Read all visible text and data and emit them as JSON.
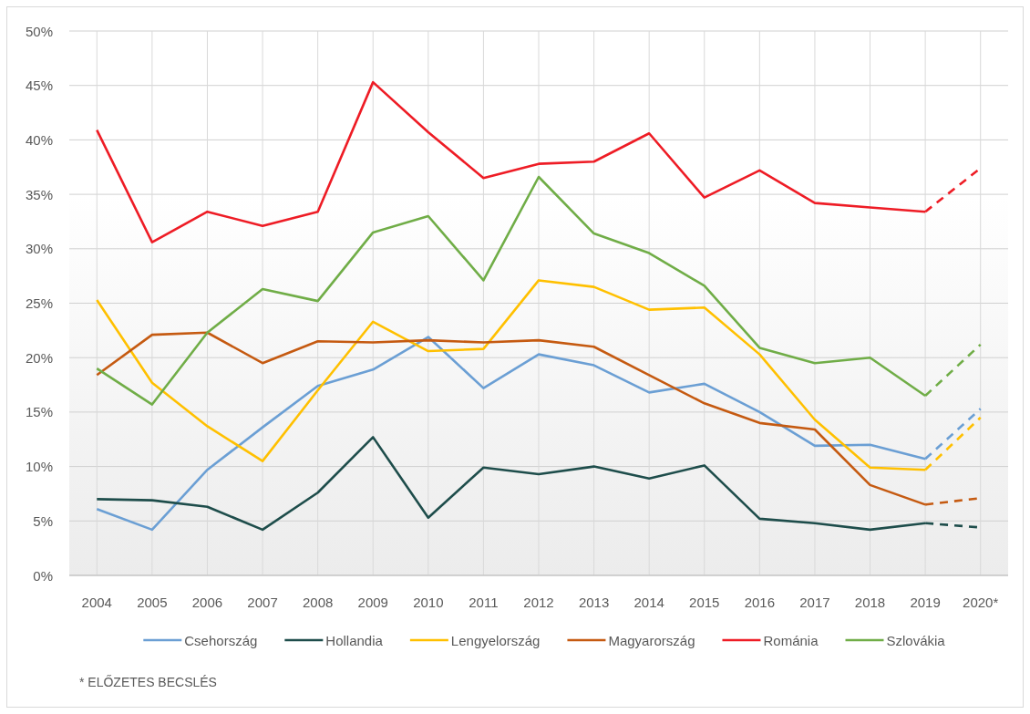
{
  "chart_data": {
    "type": "line",
    "categories": [
      "2004",
      "2005",
      "2006",
      "2007",
      "2008",
      "2009",
      "2010",
      "2011",
      "2012",
      "2013",
      "2014",
      "2015",
      "2016",
      "2017",
      "2018",
      "2019",
      "2020*"
    ],
    "ylim": [
      0,
      50
    ],
    "yticks": [
      {
        "value": 0,
        "label": "0%"
      },
      {
        "value": 5,
        "label": "5%"
      },
      {
        "value": 10,
        "label": "10%"
      },
      {
        "value": 15,
        "label": "15%"
      },
      {
        "value": 20,
        "label": "20%"
      },
      {
        "value": 25,
        "label": "25%"
      },
      {
        "value": 30,
        "label": "30%"
      },
      {
        "value": 35,
        "label": "35%"
      },
      {
        "value": 40,
        "label": "40%"
      },
      {
        "value": 45,
        "label": "45%"
      },
      {
        "value": 50,
        "label": "50%"
      }
    ],
    "grid": true,
    "legend": "bottom",
    "line_style": "solid",
    "marker": "none",
    "annotations": [
      "* ELŐZETES BECSLÉS"
    ],
    "series": [
      {
        "name": "Csehország",
        "color": "#6b9fd4",
        "values": [
          6.1,
          4.2,
          9.7,
          13.6,
          17.4,
          18.9,
          21.9,
          17.2,
          20.3,
          19.3,
          16.8,
          17.6,
          15.0,
          11.9,
          12.0,
          10.7,
          null
        ]
      },
      {
        "name": "Hollandia",
        "color": "#1e4d4b",
        "values": [
          7.0,
          6.9,
          6.3,
          4.2,
          7.6,
          12.7,
          5.3,
          9.9,
          9.3,
          10.0,
          8.9,
          10.1,
          5.2,
          4.8,
          4.2,
          4.8,
          null
        ]
      },
      {
        "name": "Lengyelország",
        "color": "#ffc000",
        "values": [
          25.3,
          17.7,
          13.7,
          10.5,
          17.0,
          23.3,
          20.6,
          20.8,
          27.1,
          26.5,
          24.4,
          24.6,
          20.3,
          14.3,
          9.9,
          9.7,
          null
        ]
      },
      {
        "name": "Magyarország",
        "color": "#c55a11",
        "values": [
          18.4,
          22.1,
          22.3,
          19.5,
          21.5,
          21.4,
          21.6,
          21.4,
          21.6,
          21.0,
          18.4,
          15.8,
          14.0,
          13.4,
          8.3,
          6.5,
          null
        ]
      },
      {
        "name": "Románia",
        "color": "#ee1c25",
        "values": [
          40.9,
          30.6,
          33.4,
          32.1,
          33.4,
          45.3,
          40.7,
          36.5,
          37.8,
          38.0,
          40.6,
          34.7,
          37.2,
          34.2,
          33.8,
          33.4,
          null
        ]
      },
      {
        "name": "Szlovákia",
        "color": "#70ad47",
        "values": [
          19.0,
          15.7,
          22.3,
          26.3,
          25.2,
          31.5,
          33.0,
          27.1,
          36.6,
          31.4,
          29.6,
          26.6,
          20.9,
          19.5,
          20.0,
          16.5,
          null
        ]
      },
      {
        "color": "#6b9fd4",
        "line_style": "dashed",
        "values": [
          null,
          null,
          null,
          null,
          null,
          null,
          null,
          null,
          null,
          null,
          null,
          null,
          null,
          null,
          null,
          10.7,
          15.3
        ]
      },
      {
        "color": "#1e4d4b",
        "line_style": "dashed",
        "values": [
          null,
          null,
          null,
          null,
          null,
          null,
          null,
          null,
          null,
          null,
          null,
          null,
          null,
          null,
          null,
          4.8,
          4.4
        ]
      },
      {
        "color": "#ffc000",
        "line_style": "dashed",
        "values": [
          null,
          null,
          null,
          null,
          null,
          null,
          null,
          null,
          null,
          null,
          null,
          null,
          null,
          null,
          null,
          9.7,
          14.5
        ]
      },
      {
        "color": "#c55a11",
        "line_style": "dashed",
        "values": [
          null,
          null,
          null,
          null,
          null,
          null,
          null,
          null,
          null,
          null,
          null,
          null,
          null,
          null,
          null,
          6.5,
          7.1
        ]
      },
      {
        "color": "#ee1c25",
        "line_style": "dashed",
        "values": [
          null,
          null,
          null,
          null,
          null,
          null,
          null,
          null,
          null,
          null,
          null,
          null,
          null,
          null,
          null,
          33.4,
          37.4
        ]
      },
      {
        "color": "#70ad47",
        "line_style": "dashed",
        "values": [
          null,
          null,
          null,
          null,
          null,
          null,
          null,
          null,
          null,
          null,
          null,
          null,
          null,
          null,
          null,
          16.5,
          21.2
        ]
      }
    ]
  }
}
